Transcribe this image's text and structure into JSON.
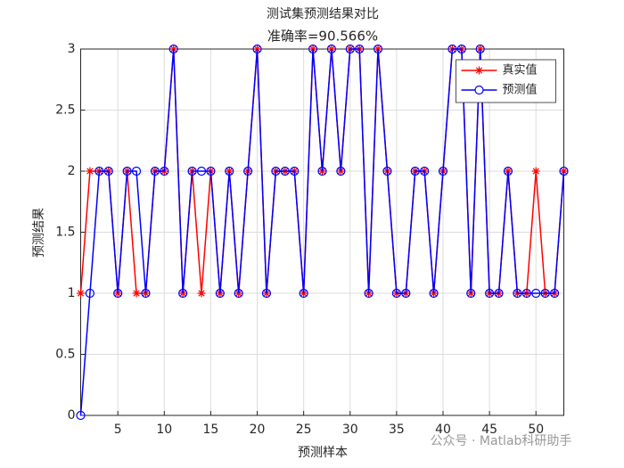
{
  "chart_data": {
    "type": "line",
    "title": "测试集预测结果对比",
    "subtitle": "准确率=90.566%",
    "x_label": "预测样本",
    "y_label": "预测结果",
    "watermark": "公众号 · Matlab科研助手",
    "x": [
      1,
      2,
      3,
      4,
      5,
      6,
      7,
      8,
      9,
      10,
      11,
      12,
      13,
      14,
      15,
      16,
      17,
      18,
      19,
      20,
      21,
      22,
      23,
      24,
      25,
      26,
      27,
      28,
      29,
      30,
      31,
      32,
      33,
      34,
      35,
      36,
      37,
      38,
      39,
      40,
      41,
      42,
      43,
      44,
      45,
      46,
      47,
      48,
      49,
      50,
      51,
      52,
      53
    ],
    "series": [
      {
        "name": "真实值",
        "color": "#ff0000",
        "marker": "star",
        "values": [
          1,
          2,
          2,
          2,
          1,
          2,
          1,
          1,
          2,
          2,
          3,
          1,
          2,
          1,
          2,
          1,
          2,
          1,
          2,
          3,
          1,
          2,
          2,
          2,
          1,
          3,
          2,
          3,
          2,
          3,
          3,
          1,
          3,
          2,
          1,
          1,
          2,
          2,
          1,
          2,
          3,
          3,
          1,
          3,
          1,
          1,
          2,
          1,
          1,
          2,
          1,
          1,
          2
        ]
      },
      {
        "name": "预测值",
        "color": "#0000ff",
        "marker": "circle",
        "values": [
          0,
          1,
          2,
          2,
          1,
          2,
          2,
          1,
          2,
          2,
          3,
          1,
          2,
          2,
          2,
          1,
          2,
          1,
          2,
          3,
          1,
          2,
          2,
          2,
          1,
          3,
          2,
          3,
          2,
          3,
          3,
          1,
          3,
          2,
          1,
          1,
          2,
          2,
          1,
          2,
          3,
          3,
          1,
          3,
          1,
          1,
          2,
          1,
          1,
          1,
          1,
          1,
          2
        ]
      }
    ],
    "xlim": [
      1,
      53
    ],
    "xticks": [
      5,
      10,
      15,
      20,
      25,
      30,
      35,
      40,
      45,
      50
    ],
    "ylim": [
      0,
      3
    ],
    "yticks": [
      0,
      0.5,
      1,
      1.5,
      2,
      2.5,
      3
    ],
    "grid": true,
    "legend": "northeast"
  }
}
